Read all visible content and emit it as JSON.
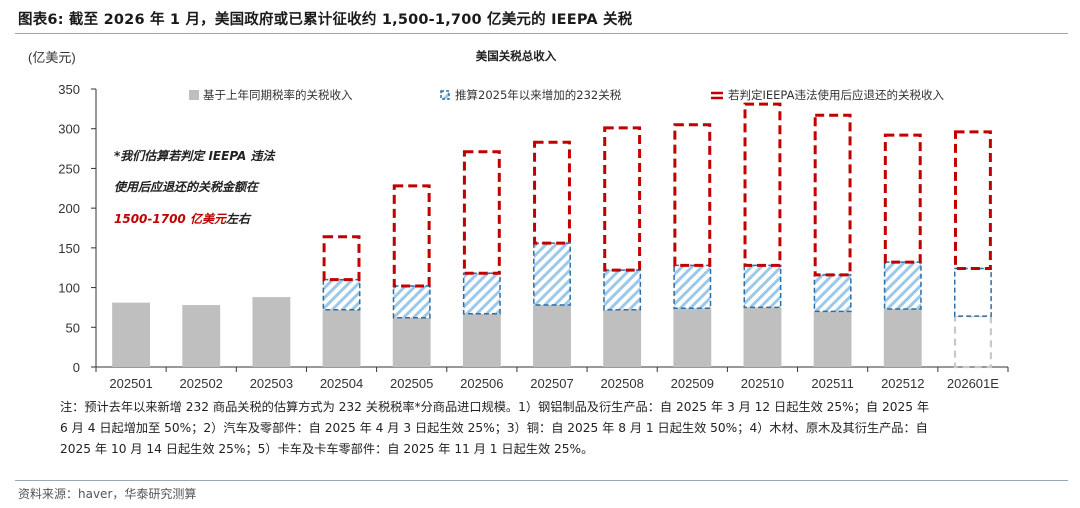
{
  "figure": {
    "title": "图表6:  截至 2026 年 1 月，美国政府或已累计征收约 1,500-1,700 亿美元的 IEEPA 关税",
    "notes": [
      "注：预计去年以来新增 232 商品关税的估算方式为 232 关税税率*分商品进口规模。1）钢铝制品及衍生产品：自 2025 年 3 月 12 日起生效 25%；自 2025 年",
      "6 月 4 日起增加至 50%；2）汽车及零部件：自 2025 年 4 月 3 日起生效 25%；3）铜：自 2025 年 8 月 1 日起生效 50%；4）木材、原木及其衍生产品：自",
      "2025 年 10 月 14 日起生效 25%；5）卡车及卡车零部件：自 2025 年 11 月 1 日起生效 25%。"
    ],
    "source": "资料来源：haver，华泰研究测算"
  },
  "chart_data": {
    "type": "bar",
    "stacked": true,
    "title": "美国关税总收入",
    "ylabel": "(亿美元)",
    "xlabel": "",
    "ylim": [
      0,
      350
    ],
    "yticks": [
      0,
      50,
      100,
      150,
      200,
      250,
      300,
      350
    ],
    "grid": false,
    "legend_position": "top",
    "categories": [
      "202501",
      "202502",
      "202503",
      "202504",
      "202505",
      "202506",
      "202507",
      "202508",
      "202509",
      "202510",
      "202511",
      "202512",
      "202601E"
    ],
    "series": [
      {
        "name": "基于上年同期税率的关税收入",
        "color": "#bfbfbf",
        "style": "solid",
        "values": [
          81,
          78,
          88,
          72,
          62,
          67,
          78,
          72,
          74,
          75,
          70,
          73,
          64
        ]
      },
      {
        "name": "推算2025年以来增加的232关税",
        "color": "#2e6da4",
        "style": "hatched",
        "values": [
          0,
          0,
          0,
          38,
          40,
          51,
          78,
          50,
          54,
          53,
          46,
          59,
          60
        ]
      },
      {
        "name": "若判定IEEPA违法使用后应退还的关税收入",
        "color": "#c00000",
        "style": "dashed-outline",
        "values": [
          0,
          0,
          0,
          54,
          126,
          153,
          127,
          179,
          177,
          203,
          201,
          160,
          172
        ]
      }
    ],
    "estimate_category": "202601E",
    "annotation": {
      "line1": "*我们估算若判定 IEEPA 违法",
      "line2": "使用后应退还的关税金额在",
      "line3_red": "1500-1700 亿美元",
      "line3_black": "左右"
    }
  }
}
